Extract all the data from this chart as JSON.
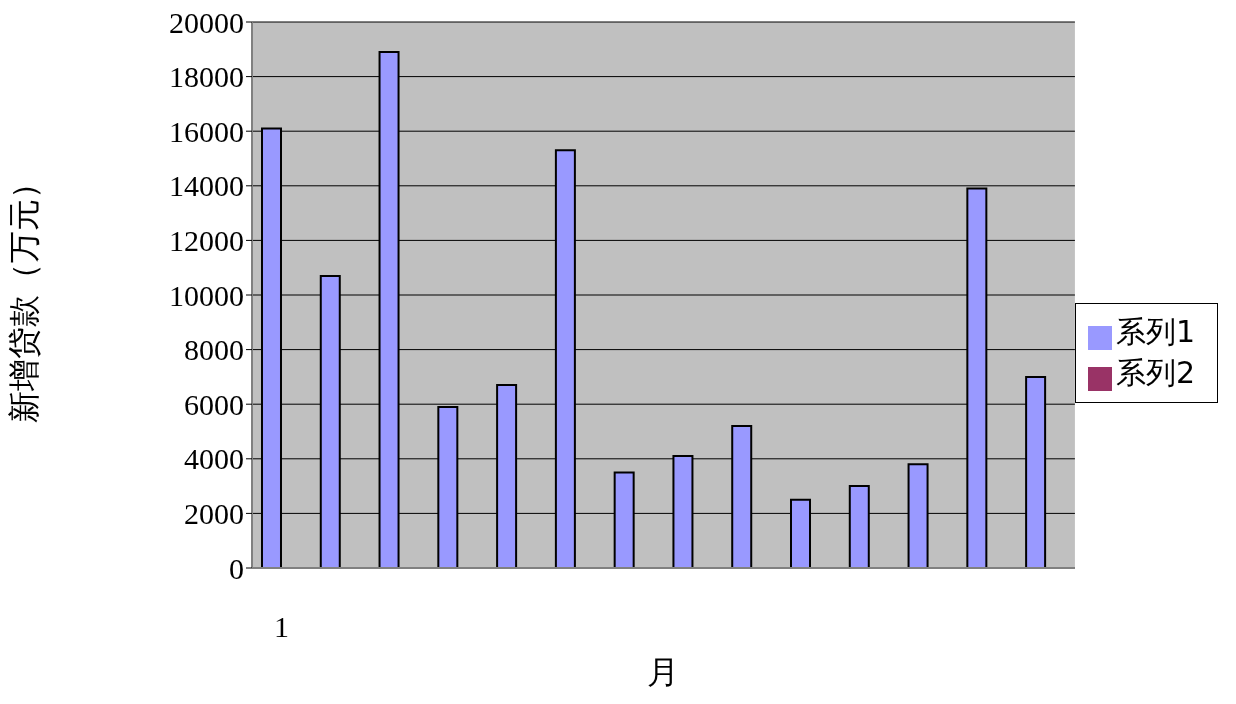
{
  "chart_data": {
    "type": "bar",
    "xlabel": "月",
    "ylabel": "新增贷款（万元）",
    "categories": [
      "1",
      null,
      null,
      null,
      null,
      null,
      null,
      null,
      null,
      null,
      null,
      null,
      null,
      null
    ],
    "series": [
      {
        "name": "系列1",
        "color": "#9999ff",
        "values": [
          16100,
          10700,
          18900,
          5900,
          6700,
          15300,
          3500,
          4100,
          5200,
          2500,
          3000,
          3800,
          13900,
          7000
        ]
      },
      {
        "name": "系列2",
        "color": "#993366",
        "values": [
          null,
          null,
          null,
          null,
          null,
          null,
          null,
          null,
          null,
          null,
          null,
          null,
          null,
          null
        ]
      }
    ],
    "ylim": [
      0,
      20000
    ],
    "yticks": [
      0,
      2000,
      4000,
      6000,
      8000,
      10000,
      12000,
      14000,
      16000,
      18000,
      20000
    ],
    "grid": "y",
    "legend": "right"
  }
}
